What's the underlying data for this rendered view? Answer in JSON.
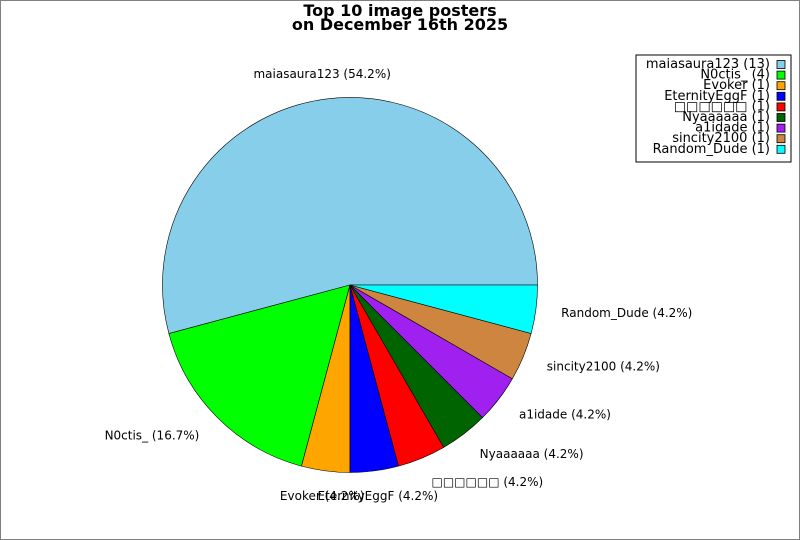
{
  "chart_data": {
    "type": "pie",
    "title": "Top 10 image posters",
    "subtitle": "on December 16th 2025",
    "legend_position": "top-right",
    "slices": [
      {
        "label": "maiasaura123",
        "count": 13,
        "percent": "54.2%",
        "color": "#87ceeb",
        "legend": "maiasaura123 (13)"
      },
      {
        "label": "N0ctis_",
        "count": 4,
        "percent": "16.7%",
        "color": "#00ff00",
        "legend": "N0ctis_ (4)"
      },
      {
        "label": "Evoker",
        "count": 1,
        "percent": "4.2%",
        "color": "#ffa500",
        "legend": "Evoker (1)"
      },
      {
        "label": "EternityEggF",
        "count": 1,
        "percent": "4.2%",
        "color": "#0000ff",
        "legend": "EternityEggF (1)"
      },
      {
        "label": "□□□□□□",
        "count": 1,
        "percent": "4.2%",
        "color": "#ff0000",
        "legend": "□□□□□□ (1)"
      },
      {
        "label": "Nyaaaaaa",
        "count": 1,
        "percent": "4.2%",
        "color": "#006400",
        "legend": "Nyaaaaaa (1)"
      },
      {
        "label": "a1idade",
        "count": 1,
        "percent": "4.2%",
        "color": "#a020f0",
        "legend": "a1idade (1)"
      },
      {
        "label": "sincity2100",
        "count": 1,
        "percent": "4.2%",
        "color": "#cd853f",
        "legend": "sincity2100 (1)"
      },
      {
        "label": "Random_Dude",
        "count": 1,
        "percent": "4.2%",
        "color": "#00ffff",
        "legend": "Random_Dude (1)"
      }
    ]
  }
}
